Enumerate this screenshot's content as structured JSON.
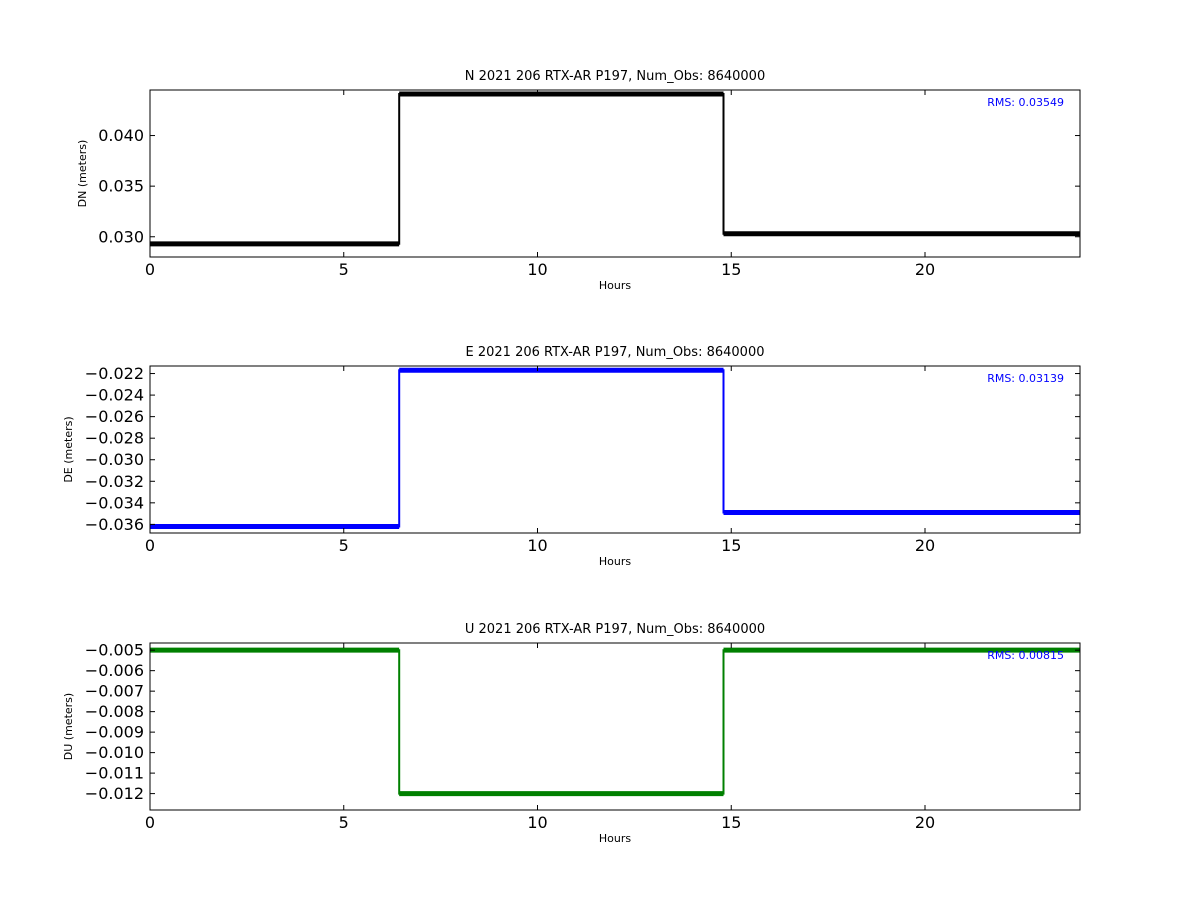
{
  "chart_data": [
    {
      "type": "line",
      "title": "N 2021 206 RTX-AR  P197, Num_Obs: 8640000",
      "xlabel": "Hours",
      "ylabel": "DN (meters)",
      "xlim": [
        0,
        24
      ],
      "ylim": [
        0.028,
        0.0445
      ],
      "xticks": [
        0,
        5,
        10,
        15,
        20
      ],
      "xtick_labels": [
        "0",
        "5",
        "10",
        "15",
        "20"
      ],
      "yticks": [
        0.03,
        0.035,
        0.04
      ],
      "ytick_labels": [
        "0.030",
        "0.035",
        "0.040"
      ],
      "color": "#000000",
      "annotation": "RMS:  0.03549",
      "annotation_color": "#0000ff",
      "series": [
        {
          "x": [
            0,
            6.43,
            6.43,
            14.8,
            14.8,
            24
          ],
          "y": [
            0.0293,
            0.0293,
            0.0441,
            0.0441,
            0.0303,
            0.0303
          ]
        }
      ]
    },
    {
      "type": "line",
      "title": "E 2021 206 RTX-AR  P197, Num_Obs: 8640000",
      "xlabel": "Hours",
      "ylabel": "DE (meters)",
      "xlim": [
        0,
        24
      ],
      "ylim": [
        -0.0368,
        -0.0213
      ],
      "xticks": [
        0,
        5,
        10,
        15,
        20
      ],
      "xtick_labels": [
        "0",
        "5",
        "10",
        "15",
        "20"
      ],
      "yticks": [
        -0.022,
        -0.024,
        -0.026,
        -0.028,
        -0.03,
        -0.032,
        -0.034,
        -0.036
      ],
      "ytick_labels": [
        "−0.022",
        "−0.024",
        "−0.026",
        "−0.028",
        "−0.030",
        "−0.032",
        "−0.034",
        "−0.036"
      ],
      "color": "#0000ff",
      "annotation": "RMS:  0.03139",
      "annotation_color": "#0000ff",
      "series": [
        {
          "x": [
            0,
            6.43,
            6.43,
            14.8,
            14.8,
            24
          ],
          "y": [
            -0.0362,
            -0.0362,
            -0.0217,
            -0.0217,
            -0.0349,
            -0.0349
          ]
        }
      ]
    },
    {
      "type": "line",
      "title": "U 2021 206 RTX-AR  P197, Num_Obs: 8640000",
      "xlabel": "Hours",
      "ylabel": "DU (meters)",
      "xlim": [
        0,
        24
      ],
      "ylim": [
        -0.0128,
        -0.00465
      ],
      "xticks": [
        0,
        5,
        10,
        15,
        20
      ],
      "xtick_labels": [
        "0",
        "5",
        "10",
        "15",
        "20"
      ],
      "yticks": [
        -0.005,
        -0.006,
        -0.007,
        -0.008,
        -0.009,
        -0.01,
        -0.011,
        -0.012
      ],
      "ytick_labels": [
        "−0.005",
        "−0.006",
        "−0.007",
        "−0.008",
        "−0.009",
        "−0.010",
        "−0.011",
        "−0.012"
      ],
      "color": "#008000",
      "annotation": "RMS:  0.00815",
      "annotation_color": "#0000ff",
      "series": [
        {
          "x": [
            0,
            6.43,
            6.43,
            14.8,
            14.8,
            24
          ],
          "y": [
            -0.005,
            -0.005,
            -0.012,
            -0.012,
            -0.005,
            -0.005
          ]
        }
      ]
    }
  ]
}
